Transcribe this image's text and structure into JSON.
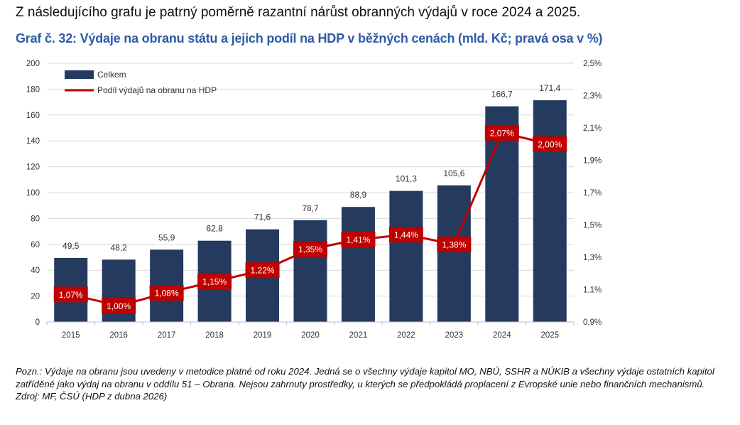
{
  "intro_text": "Z následujícího grafu je patrný poměrně razantní nárůst obranných výdajů v roce 2024 a 2025.",
  "chart_title": "Graf č. 32: Výdaje na obranu státu a jejich podíl na HDP v běžných cenách (mld. Kč; pravá osa v %)",
  "note": "Pozn.: Výdaje na obranu jsou uvedeny v metodice platné od roku 2024. Jedná se o všechny výdaje kapitol MO, NBÚ, SSHR a NÚKIB a všechny výdaje ostatních kapitol zatříděné jako výdaj na obranu v oddílu 51 – Obrana. Nejsou zahrnuty prostředky, u kterých se předpokládá proplacení z Evropské unie nebo finančních mechanismů.",
  "source": "Zdroj: MF, ČSÚ (HDP z dubna 2026)",
  "chart_data": {
    "type": "bar",
    "categories": [
      "2015",
      "2016",
      "2017",
      "2018",
      "2019",
      "2020",
      "2021",
      "2022",
      "2023",
      "2024",
      "2025"
    ],
    "series": [
      {
        "name": "Celkem",
        "type": "bar",
        "axis": "left",
        "color": "#243a5e",
        "values": [
          49.5,
          48.2,
          55.9,
          62.8,
          71.6,
          78.7,
          88.9,
          101.3,
          105.6,
          166.7,
          171.4
        ],
        "labels": [
          "49,5",
          "48,2",
          "55,9",
          "62,8",
          "71,6",
          "78,7",
          "88,9",
          "101,3",
          "105,6",
          "166,7",
          "171,4"
        ]
      },
      {
        "name": "Podíl výdajů na obranu na HDP",
        "type": "line",
        "axis": "right",
        "color": "#c00000",
        "values": [
          1.07,
          1.0,
          1.08,
          1.15,
          1.22,
          1.35,
          1.41,
          1.44,
          1.38,
          2.07,
          2.0
        ],
        "labels": [
          "1,07%",
          "1,00%",
          "1,08%",
          "1,15%",
          "1,22%",
          "1,35%",
          "1,41%",
          "1,44%",
          "1,38%",
          "2,07%",
          "2,00%"
        ]
      }
    ],
    "y_left": {
      "min": 0,
      "max": 200,
      "ticks": [
        0,
        20,
        40,
        60,
        80,
        100,
        120,
        140,
        160,
        180,
        200
      ],
      "tick_labels": [
        "0",
        "20",
        "40",
        "60",
        "80",
        "100",
        "120",
        "140",
        "160",
        "180",
        "200"
      ]
    },
    "y_right": {
      "min": 0.9,
      "max": 2.5,
      "ticks": [
        0.9,
        1.1,
        1.3,
        1.5,
        1.7,
        1.9,
        2.1,
        2.3,
        2.5
      ],
      "tick_labels": [
        "0,9%",
        "1,1%",
        "1,3%",
        "1,5%",
        "1,7%",
        "1,9%",
        "2,1%",
        "2,3%",
        "2,5%"
      ]
    },
    "grid": true,
    "legend": "top-left"
  }
}
